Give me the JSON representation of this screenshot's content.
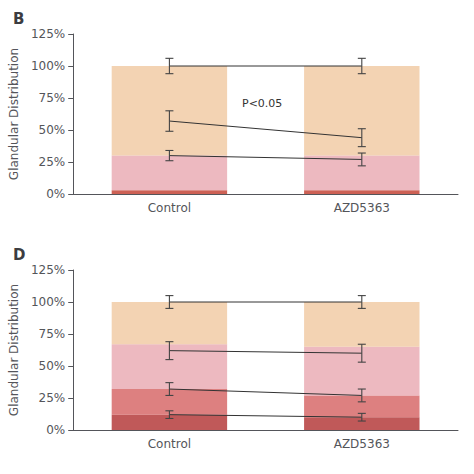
{
  "chart_data": [
    {
      "type": "bar",
      "stacked": true,
      "title": "B",
      "ylabel": "Glandular Distribution",
      "categories": [
        "Control",
        "AZD5363"
      ],
      "series": [
        {
          "color": "#c0392b",
          "values": [
            0.03,
            0.03
          ]
        },
        {
          "color": "#e8a8b0",
          "values": [
            0.27,
            0.27
          ]
        },
        {
          "color": "#f0c8a0",
          "values": [
            0.7,
            0.7
          ]
        },
        {
          "type": "line",
          "color": "#333333",
          "values": [
            1.0,
            1.0
          ],
          "error": [
            0.06,
            0.06
          ]
        },
        {
          "type": "line",
          "color": "#333333",
          "values": [
            0.57,
            0.44
          ],
          "error": [
            0.08,
            0.07
          ]
        },
        {
          "type": "line",
          "color": "#333333",
          "values": [
            0.3,
            0.27
          ],
          "error": [
            0.04,
            0.05
          ]
        }
      ],
      "ylim": [
        0,
        1.25
      ],
      "yticks": [
        {
          "value": 0,
          "label": "0%"
        },
        {
          "value": 0.25,
          "label": "25%"
        },
        {
          "value": 0.5,
          "label": "50%"
        },
        {
          "value": 0.75,
          "label": "75%"
        },
        {
          "value": 1.0,
          "label": "100%"
        },
        {
          "value": 1.25,
          "label": "125%"
        }
      ],
      "grid": false,
      "annotations": [
        "P<0.05"
      ]
    },
    {
      "type": "bar",
      "stacked": true,
      "title": "D",
      "ylabel": "Glandular Distribution",
      "categories": [
        "Control",
        "AZD5363"
      ],
      "series": [
        {
          "color": "#b03030",
          "values": [
            0.12,
            0.1
          ]
        },
        {
          "color": "#d46060",
          "values": [
            0.2,
            0.17
          ]
        },
        {
          "color": "#e8a8b0",
          "values": [
            0.35,
            0.38
          ]
        },
        {
          "color": "#f0c8a0",
          "values": [
            0.33,
            0.35
          ]
        },
        {
          "type": "line",
          "color": "#333333",
          "values": [
            1.0,
            1.0
          ],
          "error": [
            0.05,
            0.05
          ]
        },
        {
          "type": "line",
          "color": "#333333",
          "values": [
            0.62,
            0.6
          ],
          "error": [
            0.07,
            0.07
          ]
        },
        {
          "type": "line",
          "color": "#333333",
          "values": [
            0.32,
            0.27
          ],
          "error": [
            0.05,
            0.05
          ]
        },
        {
          "type": "line",
          "color": "#333333",
          "values": [
            0.12,
            0.1
          ],
          "error": [
            0.03,
            0.03
          ]
        }
      ],
      "ylim": [
        0,
        1.25
      ],
      "yticks": [
        {
          "value": 0,
          "label": "0%"
        },
        {
          "value": 0.25,
          "label": "25%"
        },
        {
          "value": 0.5,
          "label": "50%"
        },
        {
          "value": 0.75,
          "label": "75%"
        },
        {
          "value": 1.0,
          "label": "100%"
        },
        {
          "value": 1.25,
          "label": "125%"
        }
      ],
      "grid": false
    }
  ]
}
